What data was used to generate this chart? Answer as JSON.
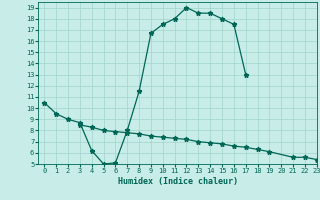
{
  "xlabel": "Humidex (Indice chaleur)",
  "bg_color": "#c8ede8",
  "grid_color": "#a0d4cc",
  "line_color": "#006655",
  "xlim": [
    -0.5,
    23
  ],
  "ylim": [
    5,
    19.5
  ],
  "yticks": [
    5,
    6,
    7,
    8,
    9,
    10,
    11,
    12,
    13,
    14,
    15,
    16,
    17,
    18,
    19
  ],
  "xticks": [
    0,
    1,
    2,
    3,
    4,
    5,
    6,
    7,
    8,
    9,
    10,
    11,
    12,
    13,
    14,
    15,
    16,
    17,
    18,
    19,
    20,
    21,
    22,
    23
  ],
  "line1_x": [
    0,
    1,
    2,
    3,
    4,
    5,
    6,
    7,
    8,
    9,
    10,
    11,
    12,
    13,
    14,
    15,
    16,
    17
  ],
  "line1_y": [
    10.5,
    9.5,
    9.0,
    8.7,
    6.2,
    5.0,
    5.1,
    8.0,
    11.5,
    16.7,
    17.5,
    18.0,
    19.0,
    18.5,
    18.5,
    18.0,
    17.5,
    13.0
  ],
  "line2_x": [
    3,
    4,
    5,
    6,
    7,
    8,
    9,
    10,
    11,
    12,
    13,
    14,
    15,
    16,
    17,
    18,
    19,
    21,
    22,
    23
  ],
  "line2_y": [
    8.5,
    8.3,
    8.0,
    7.9,
    7.8,
    7.7,
    7.5,
    7.4,
    7.3,
    7.2,
    7.0,
    6.9,
    6.8,
    6.6,
    6.5,
    6.3,
    6.1,
    5.6,
    5.6,
    5.4
  ]
}
